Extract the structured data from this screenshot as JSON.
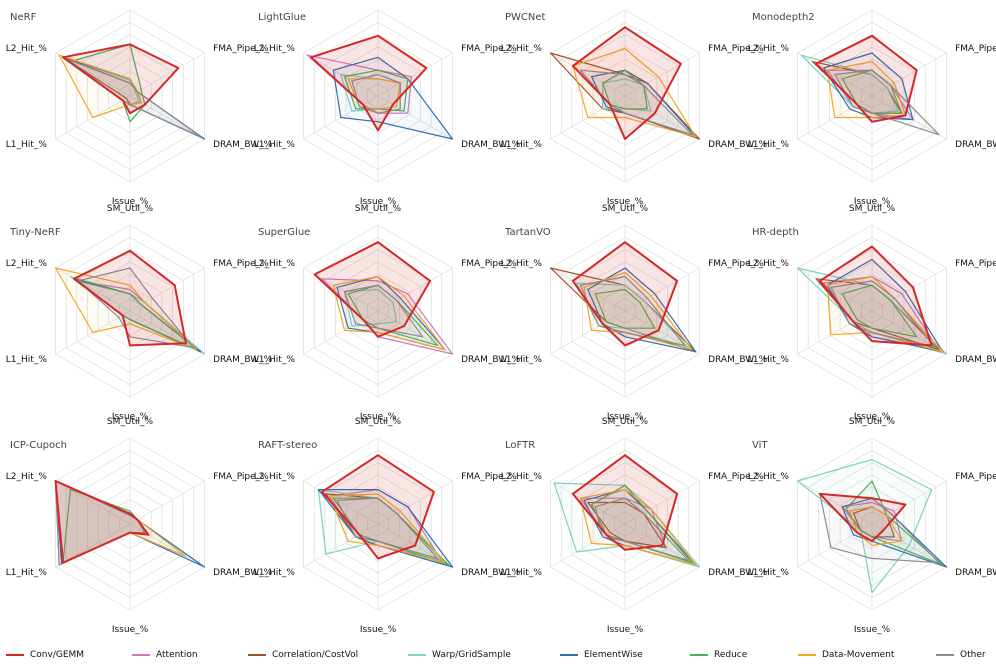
{
  "axes": [
    "SM_Util_%",
    "FMA_Pipe_%",
    "DRAM_BW_%",
    "Issue_%",
    "L1_Hit_%",
    "L2_Hit_%"
  ],
  "categories": [
    {
      "name": "Conv/GEMM",
      "color": "#d62728"
    },
    {
      "name": "Attention",
      "color": "#c77cc0"
    },
    {
      "name": "Correlation/CostVol",
      "color": "#a0522d"
    },
    {
      "name": "Warp/GridSample",
      "color": "#7fd1c3"
    },
    {
      "name": "ElementWise",
      "color": "#2f6fb3"
    },
    {
      "name": "Reduce",
      "color": "#4caf50"
    },
    {
      "name": "Data-Movement",
      "color": "#f5a623"
    },
    {
      "name": "Other",
      "color": "#8c8c8c"
    }
  ],
  "chart_data": [
    {
      "type": "radar",
      "title": "NeRF",
      "ylim": [
        0,
        100
      ],
      "series": [
        {
          "name": "Conv/GEMM",
          "values": [
            60,
            65,
            20,
            20,
            10,
            90
          ]
        },
        {
          "name": "Correlation/CostVol",
          "values": [
            15,
            10,
            15,
            10,
            5,
            90
          ]
        },
        {
          "name": "Warp/GridSample",
          "values": [
            18,
            8,
            12,
            10,
            10,
            92
          ]
        },
        {
          "name": "ElementWise",
          "values": [
            20,
            10,
            100,
            10,
            10,
            90
          ]
        },
        {
          "name": "Reduce",
          "values": [
            60,
            15,
            20,
            30,
            10,
            80
          ]
        },
        {
          "name": "Data-Movement",
          "values": [
            20,
            10,
            15,
            10,
            50,
            95
          ]
        },
        {
          "name": "Other",
          "values": [
            15,
            10,
            95,
            10,
            10,
            88
          ]
        }
      ]
    },
    {
      "type": "radar",
      "title": "LightGlue",
      "ylim": [
        0,
        100
      ],
      "series": [
        {
          "name": "Conv/GEMM",
          "values": [
            70,
            65,
            20,
            40,
            20,
            90
          ]
        },
        {
          "name": "Attention",
          "values": [
            30,
            45,
            40,
            20,
            20,
            95
          ]
        },
        {
          "name": "Warp/GridSample",
          "values": [
            20,
            30,
            25,
            15,
            35,
            50
          ]
        },
        {
          "name": "ElementWise",
          "values": [
            45,
            40,
            100,
            30,
            50,
            60
          ]
        },
        {
          "name": "Reduce",
          "values": [
            30,
            40,
            35,
            15,
            30,
            45
          ]
        },
        {
          "name": "Data-Movement",
          "values": [
            20,
            30,
            25,
            15,
            25,
            40
          ]
        },
        {
          "name": "Other",
          "values": [
            25,
            30,
            30,
            20,
            25,
            35
          ]
        }
      ]
    },
    {
      "type": "radar",
      "title": "PWCNet",
      "ylim": [
        0,
        100
      ],
      "series": [
        {
          "name": "Conv/GEMM",
          "values": [
            80,
            75,
            40,
            50,
            20,
            70
          ]
        },
        {
          "name": "Correlation/CostVol",
          "values": [
            25,
            30,
            100,
            20,
            30,
            100
          ]
        },
        {
          "name": "Warp/GridSample",
          "values": [
            20,
            25,
            35,
            15,
            30,
            30
          ]
        },
        {
          "name": "ElementWise",
          "values": [
            30,
            30,
            95,
            20,
            25,
            45
          ]
        },
        {
          "name": "Reduce",
          "values": [
            30,
            25,
            30,
            15,
            20,
            30
          ]
        },
        {
          "name": "Data-Movement",
          "values": [
            55,
            45,
            95,
            25,
            50,
            70
          ]
        },
        {
          "name": "Other",
          "values": [
            25,
            25,
            90,
            20,
            20,
            60
          ]
        }
      ]
    },
    {
      "type": "radar",
      "title": "Monodepth2",
      "ylim": [
        0,
        100
      ],
      "series": [
        {
          "name": "Conv/GEMM",
          "values": [
            70,
            60,
            45,
            30,
            20,
            75
          ]
        },
        {
          "name": "Attention",
          "values": [
            30,
            25,
            55,
            20,
            25,
            60
          ]
        },
        {
          "name": "Correlation/CostVol",
          "values": [
            25,
            20,
            40,
            20,
            20,
            80
          ]
        },
        {
          "name": "Warp/GridSample",
          "values": [
            25,
            20,
            35,
            20,
            25,
            95
          ]
        },
        {
          "name": "ElementWise",
          "values": [
            50,
            40,
            55,
            25,
            30,
            65
          ]
        },
        {
          "name": "Reduce",
          "values": [
            30,
            25,
            40,
            20,
            20,
            40
          ]
        },
        {
          "name": "Data-Movement",
          "values": [
            40,
            30,
            45,
            25,
            50,
            60
          ]
        },
        {
          "name": "Other",
          "values": [
            30,
            25,
            90,
            20,
            25,
            50
          ]
        }
      ]
    },
    {
      "type": "radar",
      "title": "Tiny-NeRF",
      "ylim": [
        0,
        100
      ],
      "series": [
        {
          "name": "Conv/GEMM",
          "values": [
            70,
            60,
            75,
            40,
            10,
            75
          ]
        },
        {
          "name": "Attention",
          "values": [
            25,
            20,
            95,
            10,
            10,
            70
          ]
        },
        {
          "name": "Warp/GridSample",
          "values": [
            20,
            20,
            100,
            10,
            10,
            80
          ]
        },
        {
          "name": "ElementWise",
          "values": [
            20,
            15,
            95,
            10,
            10,
            75
          ]
        },
        {
          "name": "Reduce",
          "values": [
            20,
            15,
            90,
            10,
            10,
            70
          ]
        },
        {
          "name": "Data-Movement",
          "values": [
            30,
            20,
            90,
            15,
            50,
            100
          ]
        },
        {
          "name": "Other",
          "values": [
            50,
            30,
            85,
            30,
            15,
            70
          ]
        }
      ]
    },
    {
      "type": "radar",
      "title": "SuperGlue",
      "ylim": [
        0,
        100
      ],
      "series": [
        {
          "name": "Conv/GEMM",
          "values": [
            80,
            70,
            35,
            30,
            20,
            85
          ]
        },
        {
          "name": "Attention",
          "values": [
            35,
            40,
            100,
            30,
            20,
            75
          ]
        },
        {
          "name": "Warp/GridSample",
          "values": [
            25,
            20,
            25,
            15,
            35,
            45
          ]
        },
        {
          "name": "ElementWise",
          "values": [
            40,
            30,
            90,
            25,
            40,
            55
          ]
        },
        {
          "name": "Reduce",
          "values": [
            30,
            25,
            80,
            20,
            20,
            40
          ]
        },
        {
          "name": "Data-Movement",
          "values": [
            40,
            35,
            90,
            25,
            45,
            60
          ]
        },
        {
          "name": "Other",
          "values": [
            30,
            25,
            60,
            20,
            30,
            45
          ]
        }
      ]
    },
    {
      "type": "radar",
      "title": "TartanVO",
      "ylim": [
        0,
        100
      ],
      "series": [
        {
          "name": "Conv/GEMM",
          "values": [
            80,
            70,
            45,
            40,
            30,
            70
          ]
        },
        {
          "name": "Correlation/CostVol",
          "values": [
            30,
            25,
            95,
            20,
            25,
            100
          ]
        },
        {
          "name": "Warp/GridSample",
          "values": [
            30,
            25,
            85,
            20,
            35,
            65
          ]
        },
        {
          "name": "ElementWise",
          "values": [
            50,
            40,
            95,
            30,
            30,
            50
          ]
        },
        {
          "name": "Reduce",
          "values": [
            25,
            20,
            40,
            20,
            25,
            40
          ]
        },
        {
          "name": "Data-Movement",
          "values": [
            45,
            35,
            90,
            25,
            45,
            55
          ]
        },
        {
          "name": "Other",
          "values": [
            40,
            30,
            80,
            25,
            35,
            60
          ]
        }
      ]
    },
    {
      "type": "radar",
      "title": "HR-depth",
      "ylim": [
        0,
        100
      ],
      "series": [
        {
          "name": "Conv/GEMM",
          "values": [
            75,
            55,
            80,
            35,
            25,
            70
          ]
        },
        {
          "name": "Attention",
          "values": [
            40,
            40,
            90,
            30,
            25,
            65
          ]
        },
        {
          "name": "Correlation/CostVol",
          "values": [
            30,
            25,
            90,
            20,
            25,
            75
          ]
        },
        {
          "name": "Warp/GridSample",
          "values": [
            30,
            25,
            100,
            25,
            25,
            100
          ]
        },
        {
          "name": "ElementWise",
          "values": [
            60,
            45,
            95,
            30,
            30,
            60
          ]
        },
        {
          "name": "Reduce",
          "values": [
            30,
            25,
            60,
            20,
            20,
            40
          ]
        },
        {
          "name": "Data-Movement",
          "values": [
            40,
            30,
            95,
            25,
            55,
            60
          ]
        },
        {
          "name": "Other",
          "values": [
            35,
            30,
            85,
            25,
            30,
            55
          ]
        }
      ]
    },
    {
      "type": "radar",
      "title": "ICP-Cupoch",
      "ylim": [
        0,
        100
      ],
      "series": [
        {
          "name": "Conv/GEMM",
          "values": [
            12,
            10,
            25,
            10,
            90,
            100
          ]
        },
        {
          "name": "Attention",
          "values": [
            10,
            10,
            25,
            10,
            95,
            100
          ]
        },
        {
          "name": "Correlation/CostVol",
          "values": [
            10,
            10,
            25,
            10,
            90,
            100
          ]
        },
        {
          "name": "Warp/GridSample",
          "values": [
            10,
            10,
            20,
            10,
            90,
            100
          ]
        },
        {
          "name": "ElementWise",
          "values": [
            12,
            10,
            100,
            10,
            92,
            100
          ]
        },
        {
          "name": "Reduce",
          "values": [
            15,
            10,
            25,
            10,
            90,
            80
          ]
        },
        {
          "name": "Data-Movement",
          "values": [
            12,
            10,
            75,
            10,
            90,
            100
          ]
        },
        {
          "name": "Other",
          "values": [
            10,
            10,
            20,
            10,
            95,
            100
          ]
        }
      ]
    },
    {
      "type": "radar",
      "title": "RAFT-stereo",
      "ylim": [
        0,
        100
      ],
      "series": [
        {
          "name": "Conv/GEMM",
          "values": [
            80,
            75,
            50,
            40,
            25,
            75
          ]
        },
        {
          "name": "Attention",
          "values": [
            40,
            40,
            85,
            25,
            30,
            65
          ]
        },
        {
          "name": "Correlation/CostVol",
          "values": [
            30,
            25,
            90,
            20,
            30,
            70
          ]
        },
        {
          "name": "Warp/GridSample",
          "values": [
            30,
            25,
            90,
            20,
            70,
            80
          ]
        },
        {
          "name": "ElementWise",
          "values": [
            40,
            40,
            100,
            25,
            30,
            80
          ]
        },
        {
          "name": "Reduce",
          "values": [
            30,
            25,
            95,
            20,
            25,
            60
          ]
        },
        {
          "name": "Data-Movement",
          "values": [
            35,
            30,
            90,
            25,
            40,
            65
          ]
        },
        {
          "name": "Other",
          "values": [
            30,
            25,
            80,
            20,
            30,
            55
          ]
        }
      ]
    },
    {
      "type": "radar",
      "title": "LoFTR",
      "ylim": [
        0,
        100
      ],
      "series": [
        {
          "name": "Conv/GEMM",
          "values": [
            80,
            70,
            50,
            30,
            25,
            70
          ]
        },
        {
          "name": "Attention",
          "values": [
            30,
            35,
            55,
            20,
            25,
            60
          ]
        },
        {
          "name": "Correlation/CostVol",
          "values": [
            25,
            25,
            55,
            20,
            20,
            50
          ]
        },
        {
          "name": "Warp/GridSample",
          "values": [
            45,
            35,
            100,
            25,
            65,
            95
          ]
        },
        {
          "name": "ElementWise",
          "values": [
            40,
            30,
            95,
            25,
            30,
            55
          ]
        },
        {
          "name": "Reduce",
          "values": [
            45,
            30,
            90,
            20,
            25,
            45
          ]
        },
        {
          "name": "Data-Movement",
          "values": [
            40,
            35,
            95,
            25,
            45,
            60
          ]
        },
        {
          "name": "Other",
          "values": [
            30,
            25,
            85,
            20,
            30,
            40
          ]
        }
      ]
    },
    {
      "type": "radar",
      "title": "ViT",
      "ylim": [
        0,
        100
      ],
      "series": [
        {
          "name": "Conv/GEMM",
          "values": [
            30,
            45,
            15,
            20,
            20,
            70
          ]
        },
        {
          "name": "Attention",
          "values": [
            25,
            30,
            40,
            15,
            15,
            40
          ]
        },
        {
          "name": "Correlation/CostVol",
          "values": [
            20,
            20,
            30,
            15,
            15,
            25
          ]
        },
        {
          "name": "Warp/GridSample",
          "values": [
            75,
            80,
            50,
            80,
            15,
            100
          ]
        },
        {
          "name": "ElementWise",
          "values": [
            30,
            25,
            100,
            20,
            25,
            40
          ]
        },
        {
          "name": "Reduce",
          "values": [
            50,
            20,
            95,
            15,
            15,
            35
          ]
        },
        {
          "name": "Data-Movement",
          "values": [
            20,
            20,
            40,
            25,
            20,
            30
          ]
        },
        {
          "name": "Other",
          "values": [
            30,
            25,
            90,
            40,
            55,
            70
          ]
        }
      ]
    }
  ]
}
